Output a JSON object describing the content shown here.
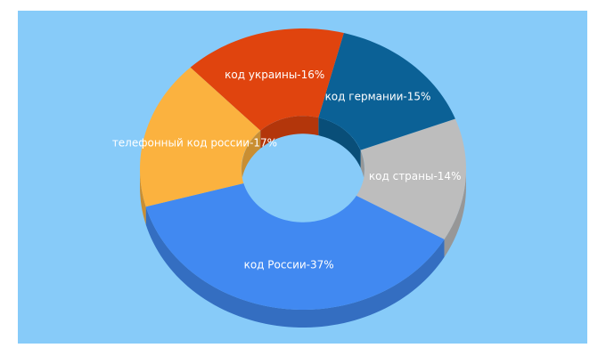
{
  "chart_data": {
    "type": "donut3d",
    "values": [
      37,
      14,
      15,
      16,
      17
    ],
    "value_labels": [
      "код России-37%",
      "код страны-14%",
      "код германии-15%",
      "код украины-16%",
      "телефонный код россии-17%"
    ],
    "colors": [
      "#4189f1",
      "#bdbdbd",
      "#0b6196",
      "#e0440e",
      "#fbb23f"
    ]
  }
}
